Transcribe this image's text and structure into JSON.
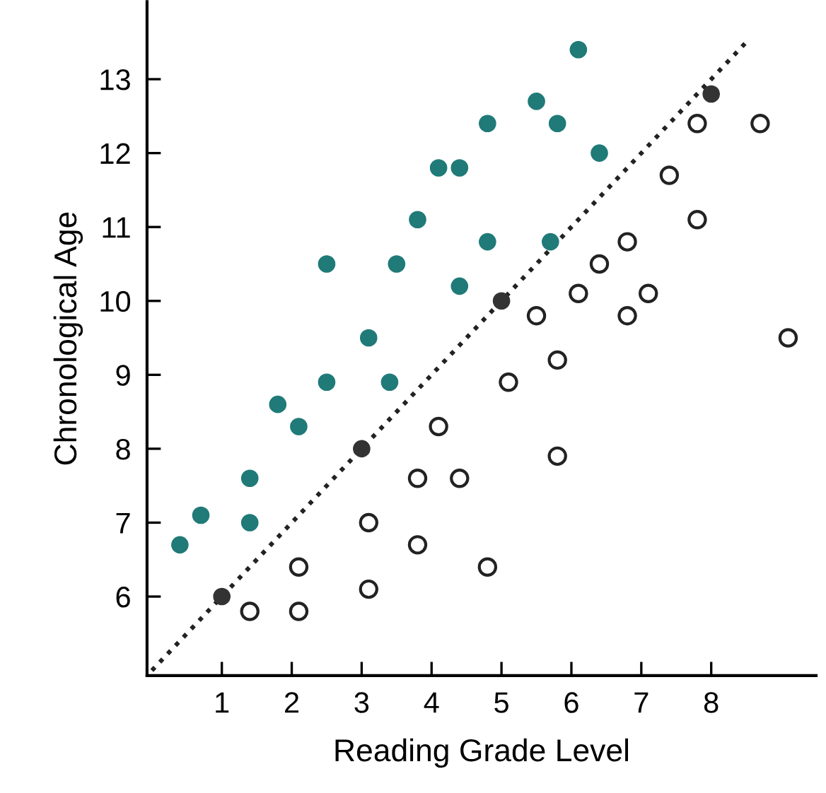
{
  "chart_data": {
    "type": "scatter",
    "xlabel": "Reading Grade Level",
    "ylabel": "Chronological Age",
    "xlim": [
      -0.07,
      9.5
    ],
    "ylim": [
      4.93,
      14.05
    ],
    "xticks": [
      1,
      2,
      3,
      4,
      5,
      6,
      7,
      8
    ],
    "yticks": [
      6,
      7,
      8,
      9,
      10,
      11,
      12,
      13
    ],
    "grid": false,
    "legend": false,
    "marker": "circle",
    "series": [
      {
        "type": "line",
        "line_style": "dotted",
        "marker": "none",
        "color": "#222222",
        "x": [
          0,
          8.5
        ],
        "values": [
          5,
          13.5
        ]
      },
      {
        "color": "#1f7a78",
        "x": [
          4.8,
          4.1,
          4.4,
          3.8,
          4.8,
          2.5,
          3.5,
          4.4,
          3.1,
          2.5,
          3.4,
          6.1,
          5.5,
          5.8,
          6.4,
          5.7,
          1.8,
          2.1,
          1.4,
          0.7,
          1.4,
          0.4
        ],
        "values": [
          12.4,
          11.8,
          11.8,
          11.1,
          10.8,
          10.5,
          10.5,
          10.2,
          9.5,
          8.9,
          8.9,
          13.4,
          12.7,
          12.4,
          12.0,
          10.8,
          8.6,
          8.3,
          7.6,
          7.1,
          7.0,
          6.7
        ]
      },
      {
        "color": "#ffffff",
        "x": [
          7.8,
          8.7,
          7.4,
          7.8,
          6.8,
          6.4,
          6.1,
          7.1,
          5.5,
          6.8,
          9.1,
          5.8,
          5.1,
          4.1,
          3.8,
          4.4,
          3.1,
          3.8,
          4.8,
          2.1,
          3.1,
          1.4,
          2.1,
          5.8
        ],
        "values": [
          12.4,
          12.4,
          11.7,
          11.1,
          10.8,
          10.5,
          10.1,
          10.1,
          9.8,
          9.8,
          9.5,
          9.2,
          8.9,
          8.3,
          7.6,
          7.6,
          7.0,
          6.7,
          6.4,
          6.4,
          6.1,
          5.8,
          5.8,
          7.9
        ]
      },
      {
        "color": "#333333",
        "x": [
          1,
          3,
          5,
          8
        ],
        "values": [
          6,
          8,
          10,
          12.8
        ]
      }
    ]
  }
}
